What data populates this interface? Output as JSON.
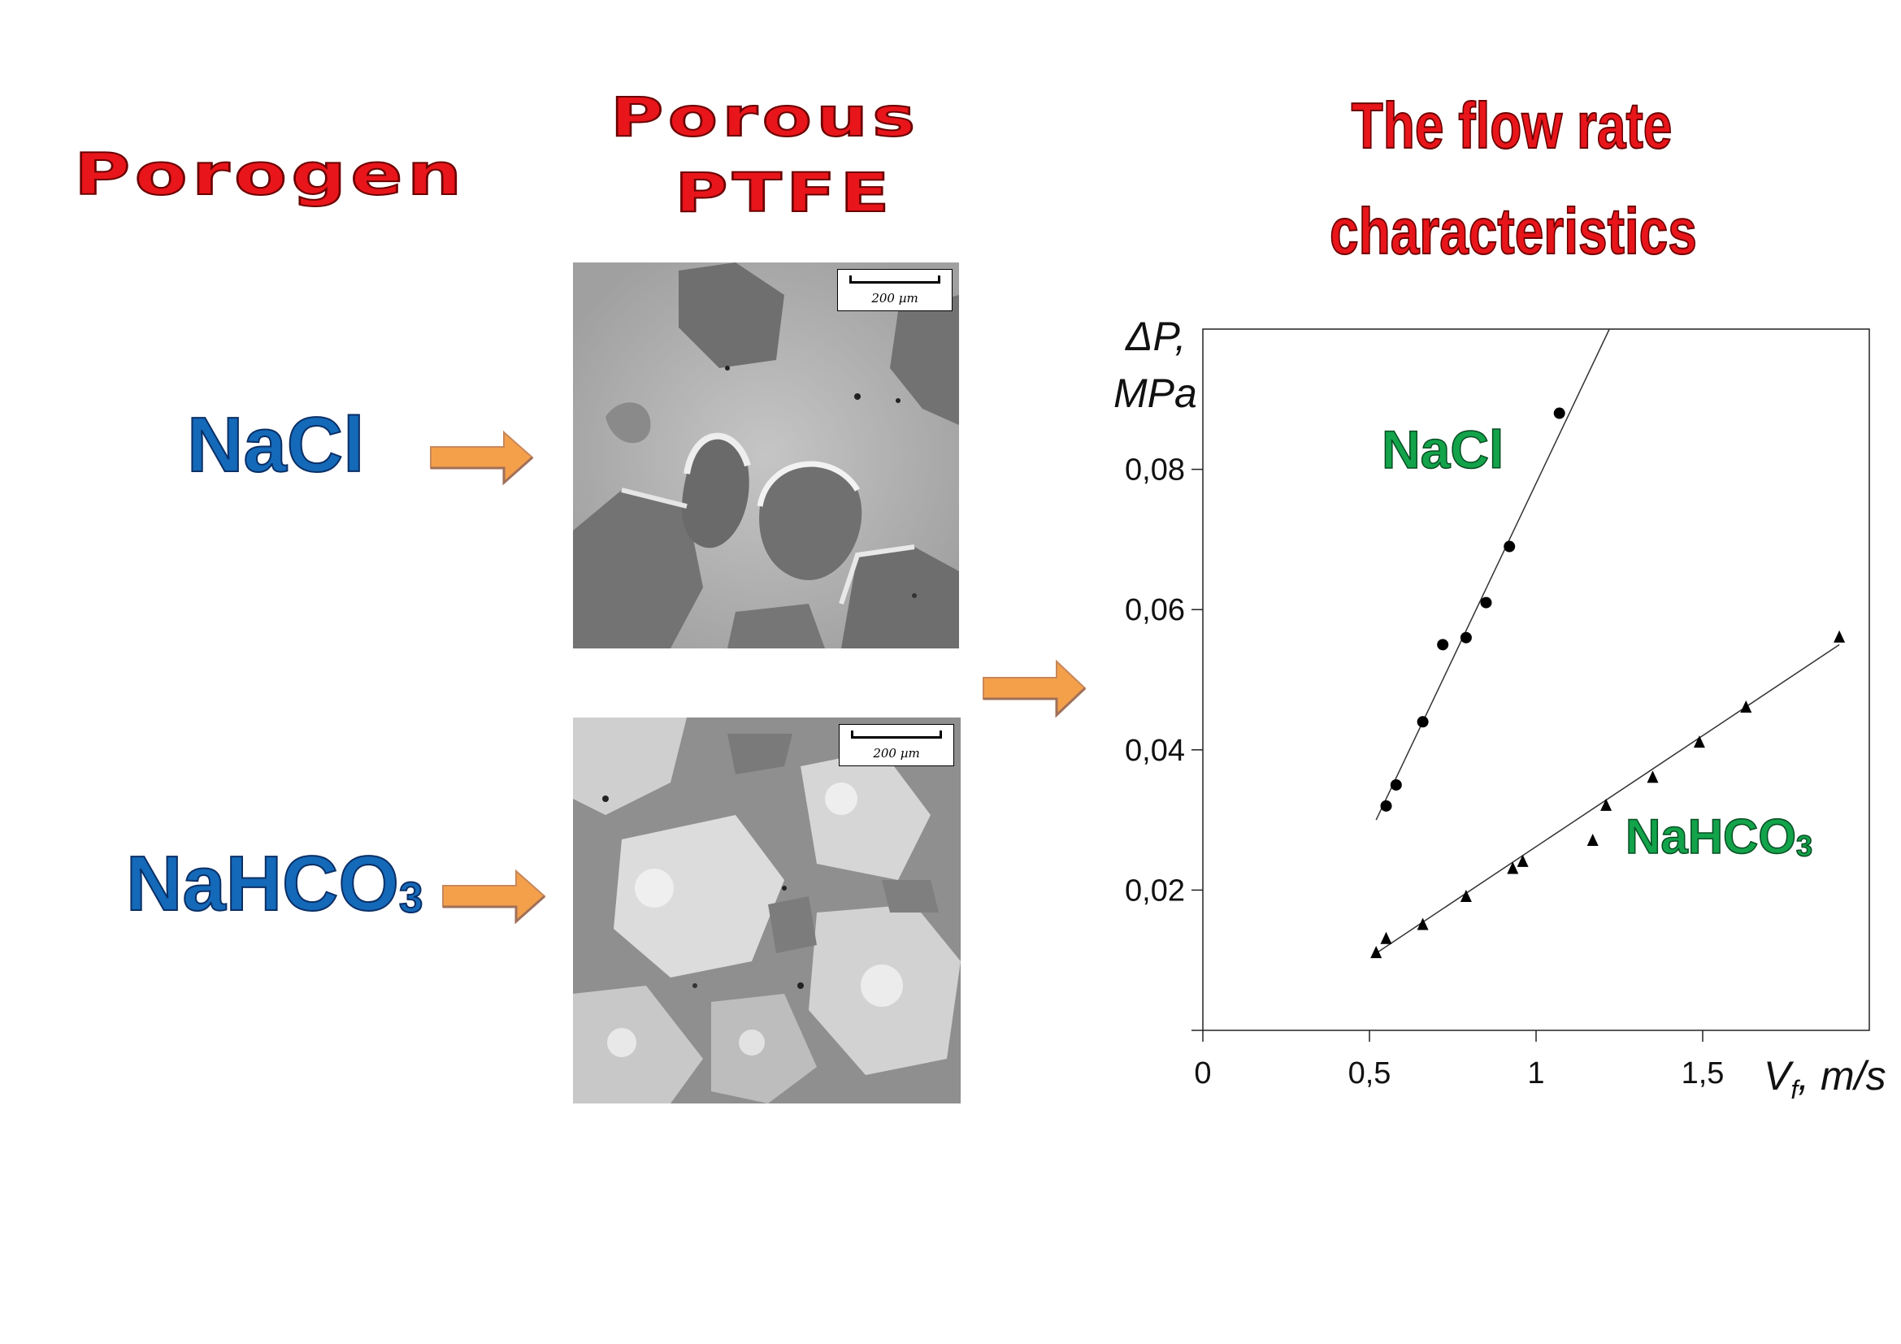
{
  "headers": {
    "porogen": "Porogen",
    "porous_line1": "Porous",
    "porous_line2": "PTFE",
    "flow_line1": "The flow rate",
    "flow_line2": "characteristics"
  },
  "porogens": {
    "nacl": "NaCl",
    "nahco3_main": "NaHCO",
    "nahco3_sub": "3"
  },
  "micrographs": {
    "top_scale": "200 µm",
    "bottom_scale": "200 µm"
  },
  "arrow_color": "#f4a04a",
  "chart_data": {
    "type": "scatter",
    "ylabel_line1": "ΔP,",
    "ylabel_line2": "MPa",
    "xlabel_main": "V",
    "xlabel_sub": "f",
    "xlabel_unit": ", m/s",
    "xlim": [
      0,
      2.0
    ],
    "ylim": [
      0,
      0.1
    ],
    "x_ticks": [
      {
        "v": 0,
        "label": "0"
      },
      {
        "v": 0.5,
        "label": "0,5"
      },
      {
        "v": 1,
        "label": "1"
      },
      {
        "v": 1.5,
        "label": "1,5"
      }
    ],
    "y_ticks": [
      {
        "v": 0.02,
        "label": "0,02"
      },
      {
        "v": 0.04,
        "label": "0,04"
      },
      {
        "v": 0.06,
        "label": "0,06"
      },
      {
        "v": 0.08,
        "label": "0,08"
      }
    ],
    "series": [
      {
        "name": "NaCl",
        "name_main": "NaCl",
        "name_sub": "",
        "marker": "circle",
        "color": "#13a34a",
        "points": [
          [
            0.55,
            0.032
          ],
          [
            0.58,
            0.035
          ],
          [
            0.66,
            0.044
          ],
          [
            0.72,
            0.055
          ],
          [
            0.79,
            0.056
          ],
          [
            0.85,
            0.061
          ],
          [
            0.92,
            0.069
          ],
          [
            1.07,
            0.088
          ]
        ],
        "fit": [
          [
            0.52,
            0.03
          ],
          [
            1.22,
            0.1
          ]
        ]
      },
      {
        "name": "NaHCO3",
        "name_main": "NaHCO",
        "name_sub": "3",
        "marker": "triangle",
        "color": "#13a34a",
        "points": [
          [
            0.52,
            0.011
          ],
          [
            0.55,
            0.013
          ],
          [
            0.66,
            0.015
          ],
          [
            0.79,
            0.019
          ],
          [
            0.93,
            0.023
          ],
          [
            0.96,
            0.024
          ],
          [
            1.17,
            0.027
          ],
          [
            1.21,
            0.032
          ],
          [
            1.35,
            0.036
          ],
          [
            1.49,
            0.041
          ],
          [
            1.63,
            0.046
          ],
          [
            1.91,
            0.056
          ]
        ],
        "fit": [
          [
            0.52,
            0.011
          ],
          [
            1.91,
            0.055
          ]
        ]
      }
    ]
  }
}
